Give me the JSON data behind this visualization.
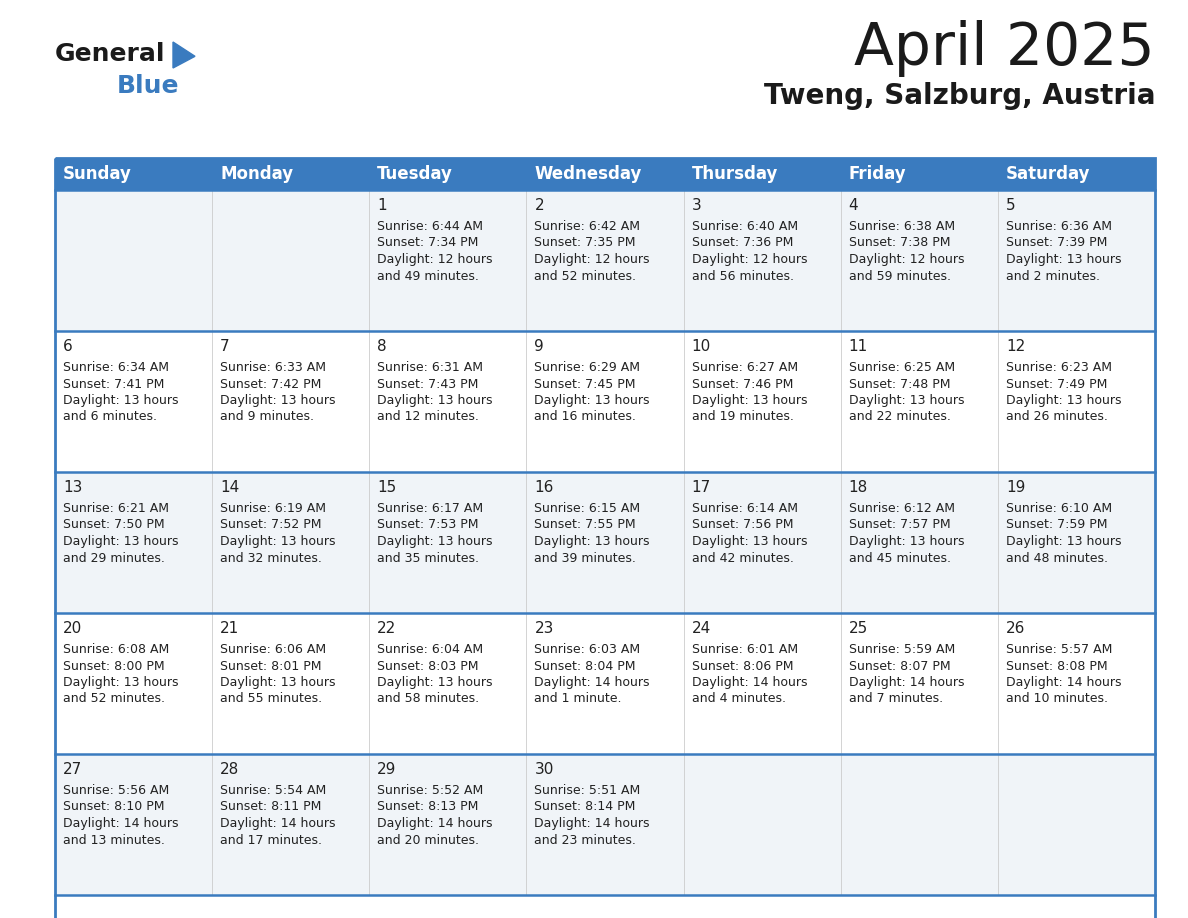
{
  "title": "April 2025",
  "subtitle": "Tweng, Salzburg, Austria",
  "header_color": "#3a7bbf",
  "header_text_color": "#ffffff",
  "day_names": [
    "Sunday",
    "Monday",
    "Tuesday",
    "Wednesday",
    "Thursday",
    "Friday",
    "Saturday"
  ],
  "cell_bg_even": "#f0f4f8",
  "cell_bg_odd": "#ffffff",
  "border_color": "#3a7bbf",
  "cell_border_color": "#aaaaaa",
  "text_color": "#222222",
  "weeks": [
    [
      {
        "day": null,
        "sunrise": null,
        "sunset": null,
        "daylight": null
      },
      {
        "day": null,
        "sunrise": null,
        "sunset": null,
        "daylight": null
      },
      {
        "day": 1,
        "sunrise": "6:44 AM",
        "sunset": "7:34 PM",
        "daylight": "12 hours\nand 49 minutes."
      },
      {
        "day": 2,
        "sunrise": "6:42 AM",
        "sunset": "7:35 PM",
        "daylight": "12 hours\nand 52 minutes."
      },
      {
        "day": 3,
        "sunrise": "6:40 AM",
        "sunset": "7:36 PM",
        "daylight": "12 hours\nand 56 minutes."
      },
      {
        "day": 4,
        "sunrise": "6:38 AM",
        "sunset": "7:38 PM",
        "daylight": "12 hours\nand 59 minutes."
      },
      {
        "day": 5,
        "sunrise": "6:36 AM",
        "sunset": "7:39 PM",
        "daylight": "13 hours\nand 2 minutes."
      }
    ],
    [
      {
        "day": 6,
        "sunrise": "6:34 AM",
        "sunset": "7:41 PM",
        "daylight": "13 hours\nand 6 minutes."
      },
      {
        "day": 7,
        "sunrise": "6:33 AM",
        "sunset": "7:42 PM",
        "daylight": "13 hours\nand 9 minutes."
      },
      {
        "day": 8,
        "sunrise": "6:31 AM",
        "sunset": "7:43 PM",
        "daylight": "13 hours\nand 12 minutes."
      },
      {
        "day": 9,
        "sunrise": "6:29 AM",
        "sunset": "7:45 PM",
        "daylight": "13 hours\nand 16 minutes."
      },
      {
        "day": 10,
        "sunrise": "6:27 AM",
        "sunset": "7:46 PM",
        "daylight": "13 hours\nand 19 minutes."
      },
      {
        "day": 11,
        "sunrise": "6:25 AM",
        "sunset": "7:48 PM",
        "daylight": "13 hours\nand 22 minutes."
      },
      {
        "day": 12,
        "sunrise": "6:23 AM",
        "sunset": "7:49 PM",
        "daylight": "13 hours\nand 26 minutes."
      }
    ],
    [
      {
        "day": 13,
        "sunrise": "6:21 AM",
        "sunset": "7:50 PM",
        "daylight": "13 hours\nand 29 minutes."
      },
      {
        "day": 14,
        "sunrise": "6:19 AM",
        "sunset": "7:52 PM",
        "daylight": "13 hours\nand 32 minutes."
      },
      {
        "day": 15,
        "sunrise": "6:17 AM",
        "sunset": "7:53 PM",
        "daylight": "13 hours\nand 35 minutes."
      },
      {
        "day": 16,
        "sunrise": "6:15 AM",
        "sunset": "7:55 PM",
        "daylight": "13 hours\nand 39 minutes."
      },
      {
        "day": 17,
        "sunrise": "6:14 AM",
        "sunset": "7:56 PM",
        "daylight": "13 hours\nand 42 minutes."
      },
      {
        "day": 18,
        "sunrise": "6:12 AM",
        "sunset": "7:57 PM",
        "daylight": "13 hours\nand 45 minutes."
      },
      {
        "day": 19,
        "sunrise": "6:10 AM",
        "sunset": "7:59 PM",
        "daylight": "13 hours\nand 48 minutes."
      }
    ],
    [
      {
        "day": 20,
        "sunrise": "6:08 AM",
        "sunset": "8:00 PM",
        "daylight": "13 hours\nand 52 minutes."
      },
      {
        "day": 21,
        "sunrise": "6:06 AM",
        "sunset": "8:01 PM",
        "daylight": "13 hours\nand 55 minutes."
      },
      {
        "day": 22,
        "sunrise": "6:04 AM",
        "sunset": "8:03 PM",
        "daylight": "13 hours\nand 58 minutes."
      },
      {
        "day": 23,
        "sunrise": "6:03 AM",
        "sunset": "8:04 PM",
        "daylight": "14 hours\nand 1 minute."
      },
      {
        "day": 24,
        "sunrise": "6:01 AM",
        "sunset": "8:06 PM",
        "daylight": "14 hours\nand 4 minutes."
      },
      {
        "day": 25,
        "sunrise": "5:59 AM",
        "sunset": "8:07 PM",
        "daylight": "14 hours\nand 7 minutes."
      },
      {
        "day": 26,
        "sunrise": "5:57 AM",
        "sunset": "8:08 PM",
        "daylight": "14 hours\nand 10 minutes."
      }
    ],
    [
      {
        "day": 27,
        "sunrise": "5:56 AM",
        "sunset": "8:10 PM",
        "daylight": "14 hours\nand 13 minutes."
      },
      {
        "day": 28,
        "sunrise": "5:54 AM",
        "sunset": "8:11 PM",
        "daylight": "14 hours\nand 17 minutes."
      },
      {
        "day": 29,
        "sunrise": "5:52 AM",
        "sunset": "8:13 PM",
        "daylight": "14 hours\nand 20 minutes."
      },
      {
        "day": 30,
        "sunrise": "5:51 AM",
        "sunset": "8:14 PM",
        "daylight": "14 hours\nand 23 minutes."
      },
      {
        "day": null,
        "sunrise": null,
        "sunset": null,
        "daylight": null
      },
      {
        "day": null,
        "sunrise": null,
        "sunset": null,
        "daylight": null
      },
      {
        "day": null,
        "sunrise": null,
        "sunset": null,
        "daylight": null
      }
    ]
  ],
  "logo_text_general": "General",
  "logo_text_blue": "Blue",
  "logo_color_general": "#1a1a1a",
  "logo_color_blue": "#3a7bbf",
  "logo_triangle_color": "#3a7bbf",
  "title_fontsize": 42,
  "subtitle_fontsize": 20,
  "day_name_fontsize": 12,
  "day_num_fontsize": 11,
  "info_fontsize": 9
}
